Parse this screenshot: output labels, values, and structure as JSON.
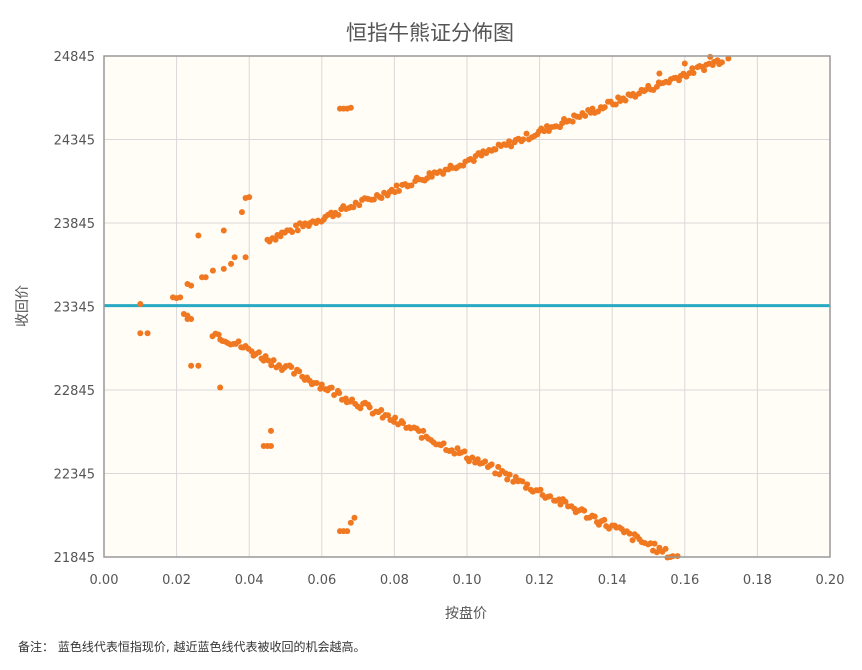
{
  "chart_data": {
    "type": "scatter",
    "title": "恒指牛熊证分佈图",
    "xlabel": "按盘价",
    "ylabel": "收回价",
    "xlim": [
      0,
      0.2
    ],
    "ylim": [
      21845,
      24845
    ],
    "x_ticks": [
      "0.00",
      "0.02",
      "0.04",
      "0.06",
      "0.08",
      "0.10",
      "0.12",
      "0.14",
      "0.16",
      "0.18",
      "0.20"
    ],
    "y_ticks": [
      "24845",
      "24345",
      "23845",
      "23345",
      "22845",
      "22345",
      "21845"
    ],
    "x_tick_values": [
      0,
      0.02,
      0.04,
      0.06,
      0.08,
      0.1,
      0.12,
      0.14,
      0.16,
      0.18,
      0.2
    ],
    "y_tick_values": [
      24845,
      24345,
      23845,
      23345,
      22845,
      22345,
      21845
    ],
    "grid": true,
    "reference_line": {
      "y": 23350,
      "color": "#29a9c4"
    },
    "colors": {
      "points": "#f07820",
      "plot_bg": "#fffdf5",
      "grid": "#d9d9d9",
      "frame": "#999999"
    },
    "series": [
      {
        "values": [
          [
            0.01,
            23360
          ],
          [
            0.01,
            23185
          ],
          [
            0.012,
            23185
          ],
          [
            0.019,
            23400
          ],
          [
            0.02,
            23395
          ],
          [
            0.021,
            23400
          ],
          [
            0.022,
            23300
          ],
          [
            0.023,
            23270
          ],
          [
            0.024,
            23270
          ],
          [
            0.023,
            23290
          ],
          [
            0.024,
            22990
          ],
          [
            0.026,
            22990
          ],
          [
            0.023,
            23480
          ],
          [
            0.024,
            23470
          ],
          [
            0.027,
            23520
          ],
          [
            0.028,
            23520
          ],
          [
            0.03,
            23560
          ],
          [
            0.033,
            23570
          ],
          [
            0.035,
            23600
          ],
          [
            0.036,
            23640
          ],
          [
            0.039,
            23640
          ],
          [
            0.026,
            23770
          ],
          [
            0.033,
            23800
          ],
          [
            0.038,
            23910
          ],
          [
            0.039,
            23995
          ],
          [
            0.04,
            24000
          ],
          [
            0.032,
            22860
          ],
          [
            0.044,
            22510
          ],
          [
            0.045,
            22510
          ],
          [
            0.046,
            22600
          ],
          [
            0.046,
            22510
          ],
          [
            0.065,
            24530
          ],
          [
            0.066,
            24530
          ],
          [
            0.067,
            24530
          ],
          [
            0.068,
            24535
          ],
          [
            0.065,
            22000
          ],
          [
            0.066,
            22000
          ],
          [
            0.067,
            22000
          ],
          [
            0.068,
            22050
          ],
          [
            0.069,
            22080
          ]
        ],
        "upper_band": {
          "x_start": 0.045,
          "x_end": 0.171,
          "y_start": 23745,
          "y_end": 24830,
          "step": 0.0007,
          "spread": 22,
          "trail": [
            [
              0.172,
              24830
            ],
            [
              0.167,
              24840
            ],
            [
              0.16,
              24800
            ],
            [
              0.153,
              24740
            ]
          ]
        },
        "lower_band": {
          "x_start": 0.03,
          "x_end": 0.157,
          "y_start": 23190,
          "y_end": 21845,
          "step": 0.0007,
          "spread": 26,
          "trail": [
            [
              0.158,
              21850
            ]
          ]
        }
      }
    ]
  },
  "note": "备注： 蓝色线代表恒指现价, 越近蓝色线代表被收回的机会越高。"
}
